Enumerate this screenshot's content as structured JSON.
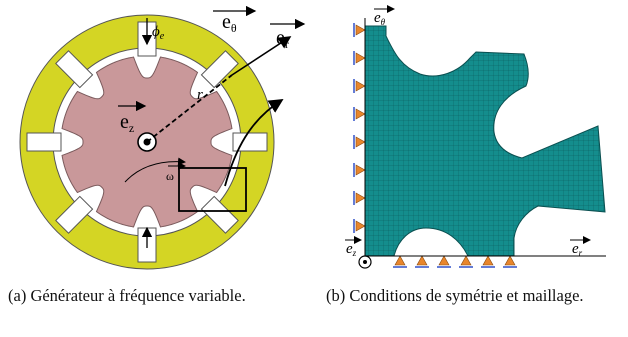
{
  "panel_a": {
    "label_e_theta": "e",
    "label_e_theta_sub": "θ",
    "label_e_r": "e",
    "label_e_r_sub": "r",
    "label_e_z": "e",
    "label_e_z_sub": "z",
    "label_r": "r",
    "label_omega": "ω",
    "label_phi": "ϕ",
    "label_phi_sub": "e",
    "colors": {
      "stator": "#d4d524",
      "rotor": "#c9989a",
      "outline": "#555555"
    }
  },
  "panel_b": {
    "label_e_theta": "e",
    "label_e_theta_sub": "θ",
    "label_e_r": "e",
    "label_e_r_sub": "r",
    "label_e_z": "e",
    "label_e_z_sub": "z",
    "colors": {
      "mesh": "#128a8a",
      "support": "#e8862c",
      "constraint": "#3050c8"
    }
  },
  "captions": {
    "a": "(a) Générateur à fréquence variable.",
    "b": "(b) Conditions de symétrie et maillage."
  }
}
